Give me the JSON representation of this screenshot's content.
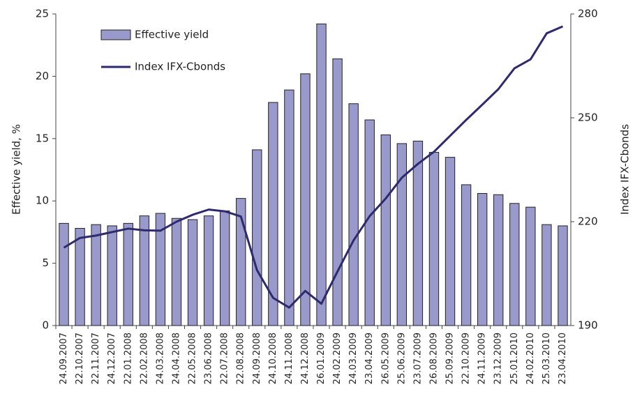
{
  "chart_data": {
    "type": "bar",
    "categories": [
      "24.09.2007",
      "22.10.2007",
      "22.11.2007",
      "24.12.2007",
      "22.01.2008",
      "22.02.2008",
      "24.03.2008",
      "24.04.2008",
      "22.05.2008",
      "23.06.2008",
      "22.07.2008",
      "22.08.2008",
      "24.09.2008",
      "24.10.2008",
      "24.11.2008",
      "24.12.2008",
      "26.01.2009",
      "24.02.2009",
      "24.03.2009",
      "23.04.2009",
      "26.05.2009",
      "25.06.2009",
      "23.07.2009",
      "26.08.2009",
      "25.09.2009",
      "22.10.2009",
      "24.11.2009",
      "23.12.2009",
      "25.01.2010",
      "24.02.2010",
      "25.03.2010",
      "23.04.2010"
    ],
    "series": [
      {
        "name": "Effective yield",
        "type": "bar",
        "color": "#9999cc",
        "values": [
          8.2,
          7.8,
          8.1,
          8.0,
          8.2,
          8.8,
          9.0,
          8.6,
          8.5,
          8.8,
          9.2,
          10.2,
          14.1,
          17.9,
          18.9,
          20.2,
          24.2,
          21.4,
          17.8,
          16.5,
          15.3,
          14.6,
          14.8,
          13.9,
          13.5,
          11.3,
          10.6,
          10.5,
          9.8,
          9.5,
          8.1,
          8.0
        ]
      },
      {
        "name": "Index IFX-Cbonds",
        "type": "line",
        "axis": "y2",
        "color": "#2e2a6e",
        "values": [
          212.5,
          215.3,
          216.0,
          217.0,
          218.0,
          217.5,
          217.4,
          220.0,
          222.0,
          223.5,
          223.0,
          221.5,
          206.0,
          198.0,
          195.2,
          200.0,
          196.3,
          205.6,
          214.6,
          221.6,
          226.7,
          232.7,
          236.7,
          240.2,
          244.8,
          249.4,
          253.8,
          258.3,
          264.3,
          266.9,
          274.4,
          276.4
        ]
      }
    ],
    "ylabel": "Effective yield, %",
    "y2label": "Index IFX-Cbonds",
    "ylim": [
      0,
      25
    ],
    "yticks": [
      0,
      5,
      10,
      15,
      20,
      25
    ],
    "y2lim": [
      190,
      280
    ],
    "y2ticks": [
      190,
      220,
      250,
      280
    ],
    "legend": "top-left"
  }
}
